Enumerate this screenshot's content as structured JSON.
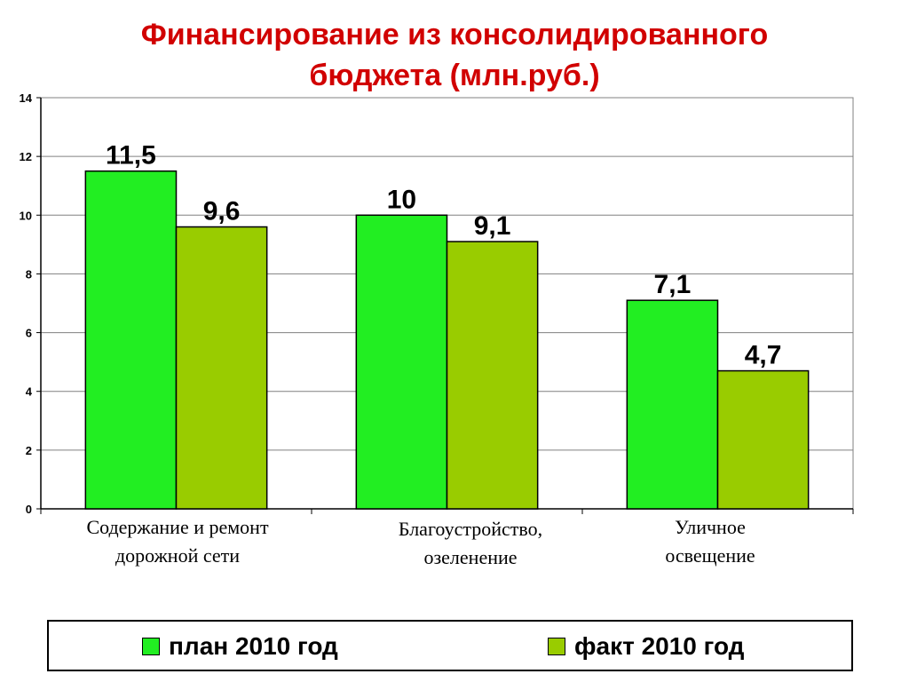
{
  "title_line1": "Финансирование из консолидированного",
  "title_line2": "бюджета (млн.руб.)",
  "chart_data": {
    "type": "bar",
    "categories": [
      [
        "Содержание и ремонт",
        "дорожной сети"
      ],
      [
        "Благоустройство,",
        "озеленение"
      ],
      [
        "Уличное",
        "освещение"
      ]
    ],
    "series": [
      {
        "name": "план 2010 год",
        "values": [
          11.5,
          10,
          7.1
        ],
        "labels": [
          "11,5",
          "10",
          "7,1"
        ],
        "color": "#22ee22"
      },
      {
        "name": "факт 2010 год",
        "values": [
          9.6,
          9.1,
          4.7
        ],
        "labels": [
          "9,6",
          "9,1",
          "4,7"
        ],
        "color": "#99cc00"
      }
    ],
    "ylim": [
      0,
      14
    ],
    "yticks": [
      0,
      2,
      4,
      6,
      8,
      10,
      12,
      14
    ],
    "grid": true,
    "legend_position": "bottom"
  }
}
